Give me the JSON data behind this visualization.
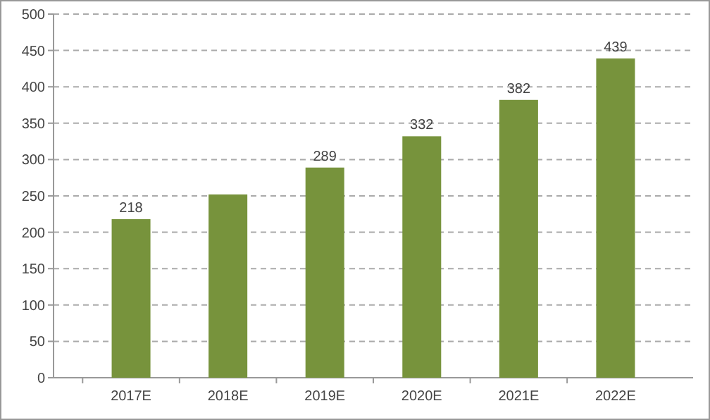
{
  "chart_data": {
    "type": "bar",
    "categories": [
      "2017E",
      "2018E",
      "2019E",
      "2020E",
      "2021E",
      "2022E"
    ],
    "values": [
      218,
      252,
      289,
      332,
      382,
      439
    ],
    "value_labels": [
      "218",
      null,
      "289",
      "332",
      "382",
      "439"
    ],
    "color": "#77933c",
    "ylim": [
      0,
      500
    ],
    "yticks": [
      0,
      50,
      100,
      150,
      200,
      250,
      300,
      350,
      400,
      450,
      500
    ],
    "grid": "y"
  }
}
